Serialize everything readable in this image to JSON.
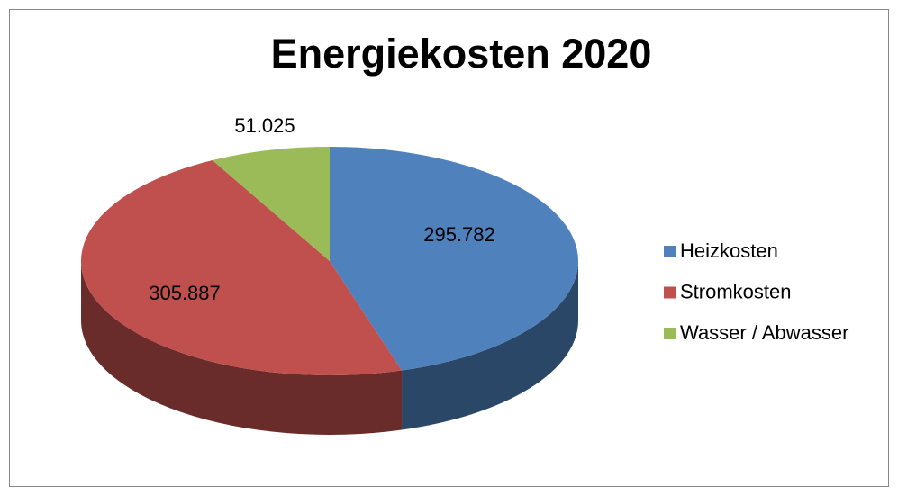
{
  "chart_data": {
    "type": "pie3d",
    "title": "Energiekosten 2020",
    "categories": [
      "Heizkosten",
      "Stromkosten",
      "Wasser / Abwasser"
    ],
    "values": [
      295782,
      305887,
      51025
    ],
    "value_labels": [
      "295.782",
      "305.887",
      "51.025"
    ],
    "colors": [
      "#4f81bd",
      "#c0504d",
      "#9bbb59"
    ],
    "legend": "right"
  }
}
